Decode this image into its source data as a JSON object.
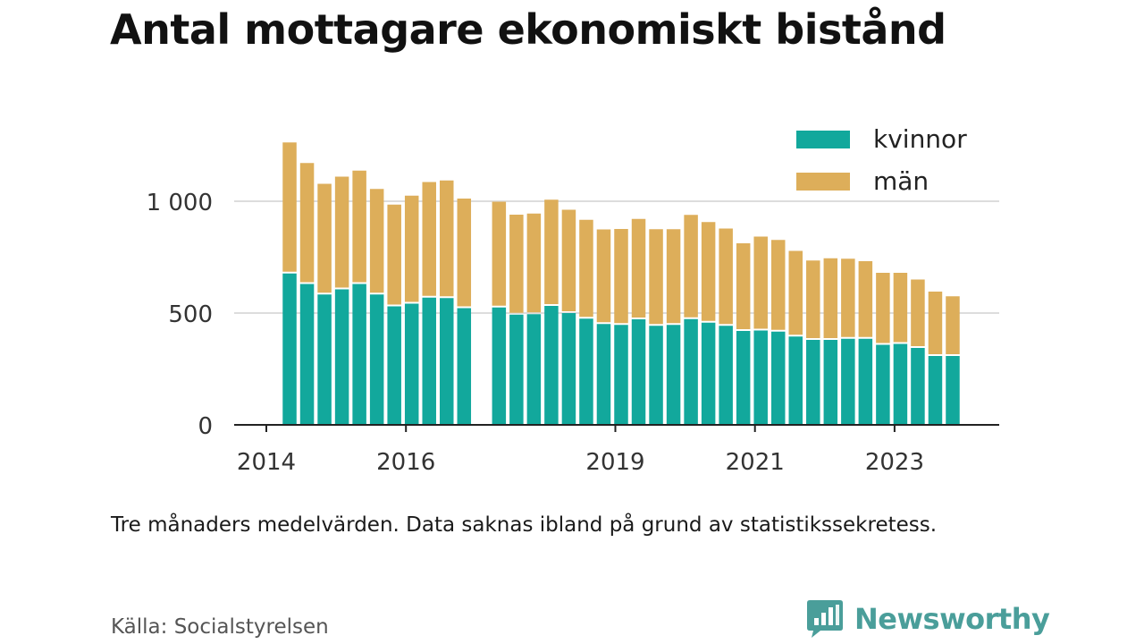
{
  "title": "Antal mottagare ekonomiskt bistånd",
  "note": "Tre månaders medelvärden. Data saknas ibland på grund av statistikssekretess.",
  "source": "Källa: Socialstyrelsen",
  "brand": "Newsworthy",
  "colors": {
    "kvinnor": "#12a89c",
    "man": "#ddae5a",
    "grid": "#dddddd",
    "axis": "#222222",
    "brand": "#4a9e9a"
  },
  "chart_data": {
    "type": "bar",
    "stacked": true,
    "x": [
      "2014-05",
      "2014-08",
      "2014-11",
      "2015-02",
      "2015-05",
      "2015-08",
      "2015-11",
      "2016-02",
      "2016-05",
      "2016-08",
      "2016-11",
      "2017-05",
      "2017-08",
      "2017-11",
      "2018-02",
      "2018-05",
      "2018-08",
      "2018-11",
      "2019-02",
      "2019-05",
      "2019-08",
      "2019-11",
      "2020-02",
      "2020-05",
      "2020-08",
      "2020-11",
      "2021-02",
      "2021-05",
      "2021-08",
      "2021-11",
      "2022-02",
      "2022-05",
      "2022-08",
      "2022-11",
      "2023-02",
      "2023-05",
      "2023-08",
      "2023-11"
    ],
    "series": [
      {
        "name": "kvinnor",
        "values": [
          677,
          630,
          583,
          606,
          630,
          583,
          530,
          542,
          569,
          567,
          522,
          525,
          493,
          495,
          532,
          500,
          475,
          451,
          447,
          472,
          443,
          447,
          473,
          457,
          443,
          420,
          422,
          417,
          395,
          380,
          380,
          385,
          385,
          358,
          362,
          344,
          308,
          308
        ]
      },
      {
        "name": "män",
        "values": [
          586,
          541,
          495,
          504,
          507,
          472,
          455,
          483,
          517,
          526,
          490,
          473,
          447,
          450,
          475,
          462,
          442,
          423,
          429,
          449,
          432,
          428,
          466,
          450,
          435,
          392,
          420,
          410,
          383,
          355,
          365,
          358,
          347,
          322,
          318,
          306,
          288,
          267
        ]
      }
    ],
    "xticks": [
      "2014",
      "2016",
      "2019",
      "2021",
      "2023"
    ],
    "yticks": [
      0,
      500,
      1000
    ],
    "ytick_labels": [
      "0",
      "500",
      "1 000"
    ],
    "ylim": [
      0,
      1300
    ],
    "legend": [
      "kvinnor",
      "män"
    ],
    "legend_position": "top-right",
    "grid": true
  }
}
